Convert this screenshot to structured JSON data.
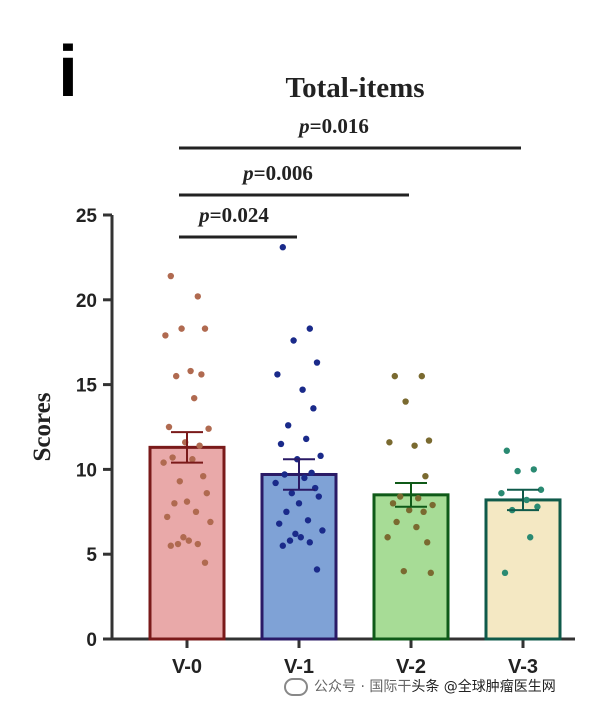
{
  "panel_label": "i",
  "watermark": {
    "prefix": "公众号 · 国际干",
    "highlight": "头条 @全球肿瘤医生网"
  },
  "chart_data": {
    "type": "bar",
    "title": "Total-items",
    "ylabel": "Scores",
    "xlabel": "",
    "ylim": [
      0,
      25
    ],
    "yticks": [
      0,
      5,
      10,
      15,
      20,
      25
    ],
    "categories": [
      "V-0",
      "V-1",
      "V-2",
      "V-3"
    ],
    "values": [
      11.3,
      9.7,
      8.5,
      8.2
    ],
    "sem": [
      0.9,
      0.9,
      0.7,
      0.6
    ],
    "bar_fill": [
      "#e9a9a9",
      "#7fa2d6",
      "#a7dc96",
      "#f4e8c3"
    ],
    "bar_edge": [
      "#7a1a1a",
      "#2a1a66",
      "#0f5a18",
      "#0f5a4a"
    ],
    "dot_color": [
      "#b06a50",
      "#1a2a8a",
      "#7a6a30",
      "#2a8a72"
    ],
    "points": [
      [
        21.4,
        20.2,
        18.3,
        18.3,
        17.9,
        15.8,
        15.6,
        15.5,
        14.2,
        12.5,
        12.4,
        11.6,
        11.4,
        10.7,
        10.6,
        10.4,
        9.6,
        9.3,
        8.6,
        8.1,
        8.0,
        7.5,
        7.2,
        6.9,
        6.0,
        5.8,
        5.6,
        5.6,
        5.5,
        4.5
      ],
      [
        23.1,
        18.3,
        17.6,
        16.3,
        15.6,
        14.7,
        13.6,
        12.6,
        11.8,
        11.5,
        10.8,
        10.6,
        9.8,
        9.7,
        9.5,
        9.2,
        8.9,
        8.6,
        8.4,
        8.0,
        7.5,
        7.0,
        6.8,
        6.4,
        6.2,
        6.0,
        5.8,
        5.7,
        5.5,
        4.1
      ],
      [
        15.5,
        15.5,
        14.0,
        11.7,
        11.6,
        11.4,
        9.6,
        8.4,
        8.3,
        8.0,
        7.9,
        7.6,
        7.5,
        6.9,
        6.6,
        6.0,
        5.7,
        4.0,
        3.9
      ],
      [
        11.1,
        10.0,
        9.9,
        8.8,
        8.6,
        8.2,
        7.8,
        7.6,
        6.0,
        3.9
      ]
    ],
    "comparisons": [
      {
        "from": 0,
        "to": 1,
        "label": "p=0.024",
        "p_value": 0.024
      },
      {
        "from": 0,
        "to": 2,
        "label": "p=0.006",
        "p_value": 0.006
      },
      {
        "from": 0,
        "to": 3,
        "label": "p=0.016",
        "p_value": 0.016
      }
    ],
    "grid": false
  }
}
